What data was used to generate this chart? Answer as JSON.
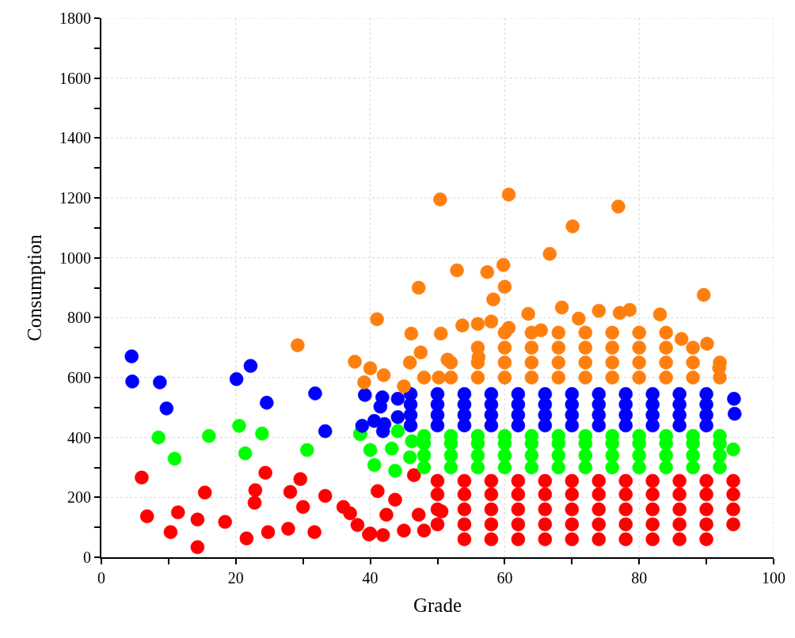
{
  "chart_data": {
    "type": "scatter",
    "xlabel": "Grade",
    "ylabel": "Consumption",
    "xlim": [
      0,
      100
    ],
    "ylim": [
      0,
      1800
    ],
    "xticks": [
      0,
      {
        "value": 10,
        "label": null
      },
      20,
      {
        "value": 30,
        "label": null
      },
      40,
      {
        "value": 50,
        "label": null
      },
      60,
      {
        "value": 70,
        "label": null
      },
      80,
      {
        "value": 90,
        "label": null
      },
      100
    ],
    "yticks": [
      0,
      {
        "value": 100,
        "label": null
      },
      200,
      {
        "value": 300,
        "label": null
      },
      400,
      {
        "value": 500,
        "label": null
      },
      600,
      {
        "value": 700,
        "label": null
      },
      800,
      {
        "value": 900,
        "label": null
      },
      1000,
      {
        "value": 1100,
        "label": null
      },
      1200,
      {
        "value": 1300,
        "label": null
      },
      1400,
      {
        "value": 1500,
        "label": null
      },
      1600,
      {
        "value": 1700,
        "label": null
      },
      1800
    ],
    "grid": true,
    "marker": "circle",
    "series": [
      {
        "color": "#ff0000",
        "x": [
          6.0,
          6.8,
          10.3,
          11.4,
          14.3,
          14.3,
          15.4,
          18.4,
          21.6,
          22.8,
          22.9,
          24.4,
          24.8,
          27.8,
          28.1,
          29.6,
          30.0,
          31.7,
          33.3,
          36.0,
          37.0,
          38.1,
          39.8,
          46.5,
          40.0,
          41.9,
          45.0,
          48.0,
          41.1,
          42.4,
          43.7,
          47.2,
          50.6,
          54,
          58,
          62,
          66,
          70,
          74,
          78,
          82,
          86,
          90,
          50,
          54,
          58,
          62,
          66,
          70,
          74,
          78,
          82,
          86,
          90,
          94,
          50,
          54,
          58,
          62,
          66,
          70,
          74,
          78,
          82,
          86,
          90,
          94,
          50,
          54,
          58,
          62,
          66,
          70,
          74,
          78,
          82,
          86,
          90,
          94,
          50,
          54,
          58,
          62,
          66,
          70,
          74,
          78,
          82,
          86,
          90,
          94
        ],
        "values": [
          266,
          137,
          84,
          150,
          126,
          34,
          216,
          118,
          63,
          182,
          224,
          282,
          84,
          95,
          218,
          261,
          168,
          84,
          205,
          168,
          147,
          108,
          76,
          274,
          79,
          74,
          89,
          89,
          221,
          142,
          192,
          142,
          153,
          60,
          60,
          60,
          60,
          60,
          60,
          60,
          60,
          60,
          60,
          110,
          110,
          110,
          110,
          110,
          110,
          110,
          110,
          110,
          110,
          110,
          110,
          160,
          160,
          160,
          160,
          160,
          160,
          160,
          160,
          160,
          160,
          160,
          160,
          210,
          210,
          210,
          210,
          210,
          210,
          210,
          210,
          210,
          210,
          210,
          210,
          255,
          255,
          255,
          255,
          255,
          255,
          255,
          255,
          255,
          255,
          255,
          255
        ]
      },
      {
        "color": "#00ff00",
        "x": [
          8.5,
          10.9,
          16.0,
          20.5,
          21.4,
          23.9,
          30.6,
          38.5,
          38.5,
          40.0,
          40.6,
          43.2,
          44.1,
          43.7,
          46.2,
          45.9,
          48,
          52,
          56,
          60,
          64,
          68,
          72,
          76,
          80,
          84,
          88,
          92,
          48,
          52,
          56,
          60,
          64,
          68,
          72,
          76,
          80,
          84,
          88,
          92,
          48,
          52,
          56,
          60,
          64,
          68,
          72,
          76,
          80,
          84,
          88,
          92,
          48,
          52,
          56,
          60,
          64,
          68,
          72,
          76,
          80,
          84,
          88,
          92,
          94
        ],
        "values": [
          400,
          329,
          405,
          439,
          347,
          413,
          358,
          413,
          411,
          358,
          308,
          363,
          421,
          289,
          387,
          334,
          300,
          300,
          300,
          300,
          300,
          300,
          300,
          300,
          300,
          300,
          300,
          300,
          340,
          340,
          340,
          340,
          340,
          340,
          340,
          340,
          340,
          340,
          340,
          340,
          380,
          380,
          380,
          380,
          380,
          380,
          380,
          380,
          380,
          380,
          380,
          380,
          405,
          405,
          405,
          405,
          405,
          405,
          405,
          405,
          405,
          405,
          405,
          405,
          360
        ]
      },
      {
        "color": "#0000ff",
        "x": [
          4.5,
          4.6,
          8.7,
          9.7,
          20.1,
          22.2,
          24.6,
          31.8,
          33.3,
          39.2,
          41.8,
          41.5,
          44.1,
          40.6,
          42.1,
          41.9,
          38.8,
          44.1,
          94.1,
          94.2,
          46,
          50,
          54,
          58,
          62,
          66,
          70,
          74,
          78,
          82,
          86,
          90,
          46,
          50,
          54,
          58,
          62,
          66,
          70,
          74,
          78,
          82,
          86,
          90,
          46,
          50,
          54,
          58,
          62,
          66,
          70,
          74,
          78,
          82,
          86,
          90,
          46,
          50,
          54,
          58,
          62,
          66,
          70,
          74,
          78,
          82,
          86,
          90
        ],
        "values": [
          671,
          587,
          584,
          497,
          595,
          639,
          516,
          547,
          421,
          542,
          534,
          503,
          529,
          455,
          445,
          421,
          439,
          468,
          529,
          479,
          440,
          440,
          440,
          440,
          440,
          440,
          440,
          440,
          440,
          440,
          440,
          440,
          475,
          475,
          475,
          475,
          475,
          475,
          475,
          475,
          475,
          475,
          475,
          475,
          510,
          510,
          510,
          510,
          510,
          510,
          510,
          510,
          510,
          510,
          510,
          510,
          545,
          545,
          545,
          545,
          545,
          545,
          545,
          545,
          545,
          545,
          545,
          545
        ]
      },
      {
        "color": "#ff7f0e",
        "x": [
          29.2,
          50.4,
          60.6,
          76.9,
          70.1,
          66.7,
          52.9,
          57.4,
          59.8,
          60.0,
          58.3,
          47.2,
          89.6,
          41.0,
          68.5,
          63.5,
          74.0,
          78.6,
          83.1,
          46.1,
          50.5,
          53.7,
          56.0,
          37.7,
          40.0,
          42.0,
          39.1,
          47.5,
          45.9,
          51.5,
          58.0,
          60.6,
          65.4,
          71.0,
          77.1,
          86.3,
          90.1,
          91.9,
          45.0,
          50.2,
          56.1,
          48,
          52,
          56,
          60,
          64,
          68,
          72,
          76,
          80,
          84,
          88,
          92,
          52,
          56,
          60,
          64,
          68,
          72,
          76,
          80,
          84,
          88,
          92,
          56,
          60,
          64,
          68,
          72,
          76,
          80,
          84,
          88,
          60,
          64,
          68,
          72,
          76,
          80,
          84
        ],
        "values": [
          708,
          1195,
          1211,
          1171,
          1105,
          1013,
          958,
          952,
          976,
          903,
          861,
          900,
          876,
          795,
          834,
          813,
          823,
          826,
          811,
          747,
          747,
          774,
          779,
          653,
          631,
          608,
          584,
          684,
          650,
          660,
          787,
          766,
          758,
          797,
          816,
          729,
          713,
          632,
          571,
          600,
          668,
          600,
          600,
          600,
          600,
          600,
          600,
          600,
          600,
          600,
          600,
          600,
          600,
          650,
          650,
          650,
          650,
          650,
          650,
          650,
          650,
          650,
          650,
          650,
          700,
          700,
          700,
          700,
          700,
          700,
          700,
          700,
          700,
          750,
          750,
          750,
          750,
          750,
          750,
          750
        ]
      }
    ]
  }
}
